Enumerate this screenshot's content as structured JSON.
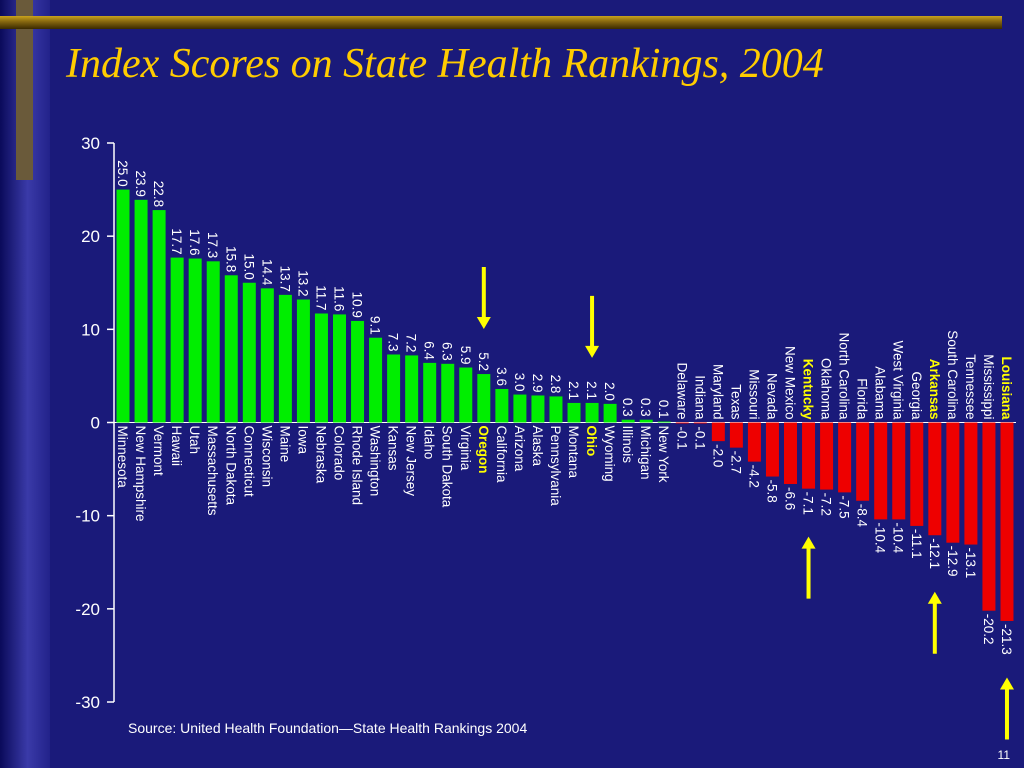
{
  "slide": {
    "title": "Index Scores on State Health Rankings, 2004",
    "source": "Source:  United Health Foundation—State Health Rankings 2004",
    "page_number": "11"
  },
  "colors": {
    "background": "#1a1a7a",
    "positive_bar": "#00ee00",
    "negative_bar": "#ee0000",
    "highlight_label": "#ffff00",
    "arrow": "#ffff00",
    "text": "#ffffff",
    "title": "#ffcc00"
  },
  "chart_data": {
    "type": "bar",
    "title": "Index Scores on State Health Rankings, 2004",
    "xlabel": "",
    "ylabel": "",
    "ylim": [
      -30,
      30
    ],
    "yticks": [
      "30",
      "20",
      "10",
      "0",
      "-10",
      "-20",
      "-30"
    ],
    "ytick_values": [
      30,
      20,
      10,
      0,
      -10,
      -20,
      -30
    ],
    "grid": false,
    "legend": "none",
    "categories": [
      "Minnesota",
      "New Hampshire",
      "Vermont",
      "Hawaii",
      "Utah",
      "Massachusetts",
      "North Dakota",
      "Connecticut",
      "Wisconsin",
      "Maine",
      "Iowa",
      "Nebraska",
      "Colorado",
      "Rhode Island",
      "Washington",
      "Kansas",
      "New Jersey",
      "Idaho",
      "South Dakota",
      "Virginia",
      "Oregon",
      "California",
      "Arizona",
      "Alaska",
      "Pennsylvania",
      "Montana",
      "Ohio",
      "Wyoming",
      "Illinois",
      "Michigan",
      "New York",
      "Delaware",
      "Indiana",
      "Maryland",
      "Texas",
      "Missouri",
      "Nevada",
      "New Mexico",
      "Kentucky",
      "Oklahoma",
      "North Carolina",
      "Florida",
      "Alabama",
      "West Virginia",
      "Georgia",
      "Arkansas",
      "South Carolina",
      "Tennessee",
      "Mississippi",
      "Louisiana"
    ],
    "values": [
      25.0,
      23.9,
      22.8,
      17.7,
      17.6,
      17.3,
      15.8,
      15.0,
      14.4,
      13.7,
      13.2,
      11.7,
      11.6,
      10.9,
      9.1,
      7.3,
      7.2,
      6.4,
      6.3,
      5.9,
      5.2,
      3.6,
      3.0,
      2.9,
      2.8,
      2.1,
      2.1,
      2.0,
      0.3,
      0.3,
      0.1,
      -0.1,
      -0.1,
      -2.0,
      -2.7,
      -4.2,
      -5.8,
      -6.6,
      -7.1,
      -7.2,
      -7.5,
      -8.4,
      -10.4,
      -10.4,
      -11.1,
      -12.1,
      -12.9,
      -13.1,
      -20.2,
      -21.3
    ],
    "value_labels": [
      "25.0",
      "23.9",
      "22.8",
      "17.7",
      "17.6",
      "17.3",
      "15.8",
      "15.0",
      "14.4",
      "13.7",
      "13.2",
      "11.7",
      "11.6",
      "10.9",
      "9.1",
      "7.3",
      "7.2",
      "6.4",
      "6.3",
      "5.9",
      "5.2",
      "3.6",
      "3.0",
      "2.9",
      "2.8",
      "2.1",
      "2.1",
      "2.0",
      "0.3",
      "0.3",
      "0.1",
      "-0.1",
      "-0.1",
      "-2.0",
      "-2.7",
      "-4.2",
      "-5.8",
      "-6.6",
      "-7.1",
      "-7.2",
      "-7.5",
      "-8.4",
      "-10.4",
      "-10.4",
      "-11.1",
      "-12.1",
      "-12.9",
      "-13.1",
      "-20.2",
      "-21.3"
    ],
    "highlighted": [
      "Oregon",
      "Ohio",
      "Kentucky",
      "Arkansas",
      "Louisiana"
    ],
    "arrows": [
      {
        "category": "Oregon",
        "direction": "down"
      },
      {
        "category": "Ohio",
        "direction": "down"
      },
      {
        "category": "Kentucky",
        "direction": "up"
      },
      {
        "category": "Arkansas",
        "direction": "up"
      },
      {
        "category": "Louisiana",
        "direction": "up"
      }
    ]
  }
}
